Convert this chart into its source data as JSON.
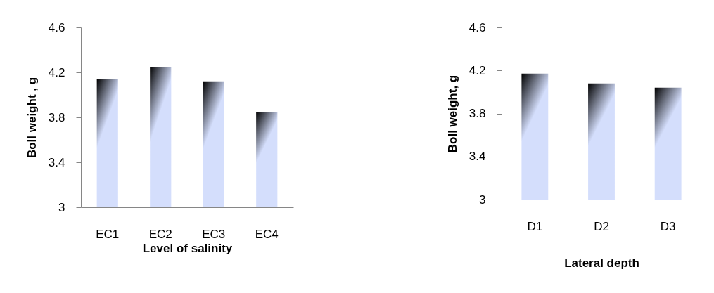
{
  "chart_data": [
    {
      "type": "bar",
      "categories": [
        "EC1",
        "EC2",
        "EC3",
        "EC4"
      ],
      "values": [
        4.14,
        4.25,
        4.12,
        3.85
      ],
      "color": "#d4defc",
      "xlabel": "Level of salinity",
      "ylabel": "Boll weight , g",
      "ylim": [
        3,
        4.6
      ],
      "yticks": [
        3,
        3.4,
        3.8,
        4.2,
        4.6
      ]
    },
    {
      "type": "bar",
      "categories": [
        "D1",
        "D2",
        "D3"
      ],
      "values": [
        4.17,
        4.08,
        4.04
      ],
      "color": "#d4defc",
      "xlabel": "Lateral depth",
      "ylabel": "Boll weight, g",
      "ylim": [
        3,
        4.6
      ],
      "yticks": [
        3,
        3.4,
        3.8,
        4.2,
        4.6
      ]
    }
  ]
}
